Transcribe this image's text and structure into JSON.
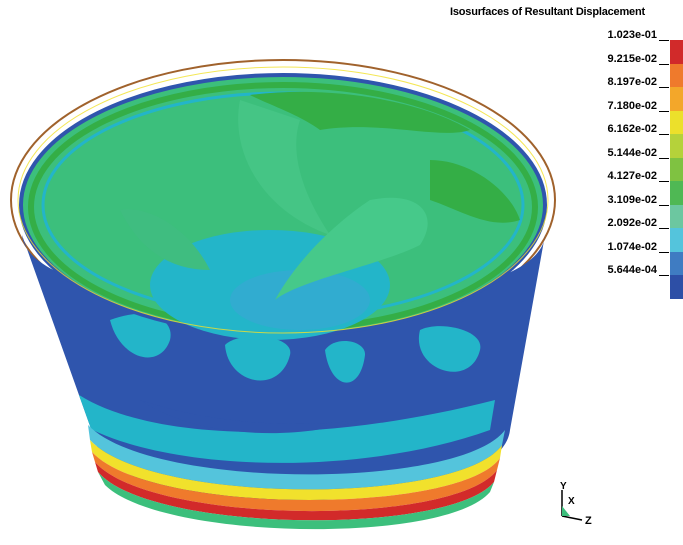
{
  "legend": {
    "title": "Isosurfaces of Resultant Displacement",
    "labels": [
      "1.023e-01",
      "9.215e-02",
      "8.197e-02",
      "7.180e-02",
      "6.162e-02",
      "5.144e-02",
      "4.127e-02",
      "3.109e-02",
      "2.092e-02",
      "1.074e-02",
      "5.644e-04"
    ],
    "colors": [
      "#d12a2a",
      "#ef7a2c",
      "#f3a72a",
      "#ece02b",
      "#b5d23a",
      "#7fc241",
      "#4fb854",
      "#6cc7a0",
      "#54c4dc",
      "#3f7cc2",
      "#2d4fa6"
    ]
  },
  "triad": {
    "y_label": "Y",
    "x_label": "X",
    "z_label": "Z"
  },
  "model_colors": {
    "outer_band_blue": "#2f55ad",
    "cyan": "#23b5c9",
    "green": "#3cbf7c",
    "dark_green": "#34ae46",
    "red": "#d22a2a",
    "orange": "#ef7a2c",
    "yellow": "#f1e12c",
    "rim_outline": "#a0622c"
  }
}
